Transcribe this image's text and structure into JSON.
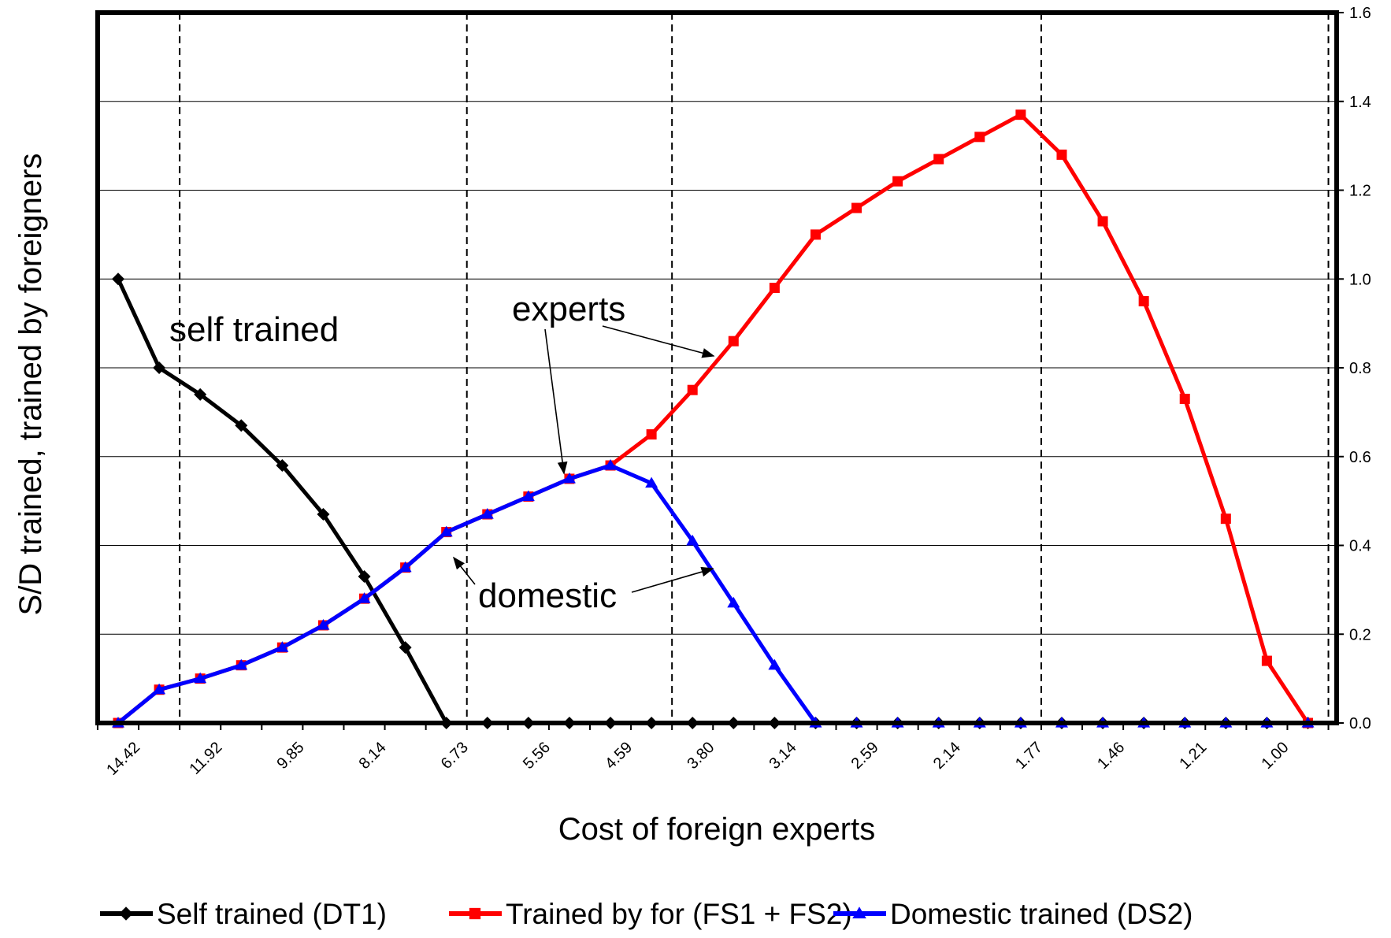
{
  "chart_data": {
    "type": "line",
    "title": "",
    "xlabel": "Cost of foreign experts",
    "ylabel": "S/D trained, trained by foreigners",
    "ylim": [
      0,
      1.6
    ],
    "yticks": [
      "0.0",
      "0.2",
      "0.4",
      "0.6",
      "0.8",
      "1.0",
      "1.2",
      "1.4",
      "1.6"
    ],
    "x_tick_labels": [
      "14.42",
      "11.92",
      "9.85",
      "8.14",
      "6.73",
      "5.56",
      "4.59",
      "3.80",
      "3.14",
      "2.59",
      "2.14",
      "1.77",
      "1.46",
      "1.21",
      "1.00"
    ],
    "grid": "horizontal",
    "legend_position": "bottom",
    "reference_lines": [
      1.5,
      8.5,
      13.5,
      22.5,
      29.5
    ],
    "series": [
      {
        "name": "Self trained (DT1)",
        "color": "#000000",
        "marker": "diamond",
        "values": [
          1.0,
          0.8,
          0.74,
          0.67,
          0.58,
          0.47,
          0.33,
          0.17,
          0,
          0,
          0,
          0,
          0,
          0,
          0,
          0,
          0,
          0,
          0,
          0,
          0,
          0,
          0,
          0,
          0,
          0,
          0,
          0,
          0,
          0
        ]
      },
      {
        "name": "Trained by for (FS1 + FS2)",
        "color": "#ff0000",
        "marker": "square",
        "values": [
          0,
          0.075,
          0.1,
          0.13,
          0.17,
          0.22,
          0.28,
          0.35,
          0.43,
          0.47,
          0.51,
          0.55,
          0.58,
          0.65,
          0.75,
          0.86,
          0.98,
          1.1,
          1.16,
          1.22,
          1.27,
          1.32,
          1.37,
          1.28,
          1.13,
          0.95,
          0.73,
          0.46,
          0.14,
          0
        ]
      },
      {
        "name": "Domestic trained (DS2)",
        "color": "#0000ff",
        "marker": "triangle",
        "values": [
          0,
          0.075,
          0.1,
          0.13,
          0.17,
          0.22,
          0.28,
          0.35,
          0.43,
          0.47,
          0.51,
          0.55,
          0.58,
          0.54,
          0.41,
          0.27,
          0.13,
          0,
          0,
          0,
          0,
          0,
          0,
          0,
          0,
          0,
          0,
          0,
          0,
          0
        ]
      }
    ],
    "annotations": {
      "self_trained": "self trained",
      "experts": "experts",
      "domestic": "domestic"
    }
  }
}
